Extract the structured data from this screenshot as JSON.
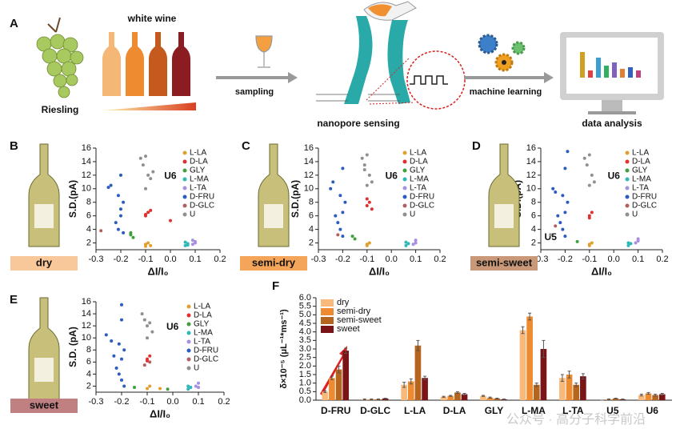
{
  "panel_a": {
    "label": "A",
    "wine": "white wine",
    "grape": "Riesling",
    "step1": "sampling",
    "step2": "nanopore sensing",
    "step3": "machine learning",
    "step4": "data analysis"
  },
  "watermark": "公众号 · 高分子科学前沿",
  "chart_data": [
    {
      "type": "scatter",
      "panel": "B",
      "sample": "dry",
      "sample_color": "#f9c89a",
      "xlabel": "ΔI/I₀",
      "ylabel": "S.D.(pA)",
      "annotations": [
        "U6"
      ],
      "xlim": [
        -0.3,
        0.2
      ],
      "xticks": [
        -0.3,
        -0.2,
        -0.1,
        {
          "value": 0,
          "label": "0.0"
        },
        0.1,
        0.2
      ],
      "ylim": [
        1,
        16
      ],
      "yticks": [
        2,
        4,
        6,
        8,
        10,
        12,
        14,
        16
      ],
      "series": [
        {
          "name": "L-LA",
          "color": "#e0a030",
          "x": [
            -0.1,
            -0.09,
            -0.1,
            -0.08
          ],
          "values": [
            1.5,
            2,
            1.8,
            1.6
          ]
        },
        {
          "name": "D-LA",
          "color": "#e03030",
          "x": [
            -0.1,
            -0.09,
            -0.08,
            -0.1,
            0
          ],
          "values": [
            6.2,
            6.5,
            6.8,
            6,
            5.3
          ]
        },
        {
          "name": "GLY",
          "color": "#40a040",
          "x": [
            -0.16,
            -0.15,
            -0.16
          ],
          "values": [
            3.2,
            2.8,
            3.5
          ]
        },
        {
          "name": "L-MA",
          "color": "#30b8b8",
          "x": [
            0.06,
            0.07,
            0.06,
            0.07
          ],
          "values": [
            1.6,
            1.9,
            2.1,
            1.7
          ]
        },
        {
          "name": "L-TA",
          "color": "#a890e0",
          "x": [
            0.09,
            0.1,
            0.1,
            0.09
          ],
          "values": [
            1.8,
            2.2,
            2,
            2.4
          ]
        },
        {
          "name": "D-FRU",
          "color": "#2c5cc0",
          "x": [
            -0.25,
            -0.24,
            -0.2,
            -0.21,
            -0.19,
            -0.2,
            -0.22,
            -0.21,
            -0.19,
            -0.2
          ],
          "values": [
            10.2,
            10.5,
            12,
            9,
            8,
            6,
            5,
            4,
            3.5,
            7
          ]
        },
        {
          "name": "D-GLC",
          "color": "#b06060",
          "x": [
            -0.28
          ],
          "values": [
            3.8
          ]
        },
        {
          "name": "U",
          "color": "#909090",
          "x": [
            -0.12,
            -0.11,
            -0.1,
            -0.09,
            -0.08,
            -0.07,
            -0.1
          ],
          "values": [
            14.5,
            13.5,
            14.8,
            12,
            11.5,
            12.5,
            10
          ]
        }
      ]
    },
    {
      "type": "scatter",
      "panel": "C",
      "sample": "semi-dry",
      "sample_color": "#f4a55a",
      "xlabel": "ΔI/I₀",
      "ylabel": "S.D.(pA)",
      "annotations": [
        "U6"
      ],
      "xlim": [
        -0.3,
        0.2
      ],
      "xticks": [
        -0.3,
        -0.2,
        -0.1,
        {
          "value": 0,
          "label": "0.0"
        },
        0.1,
        0.2
      ],
      "ylim": [
        1,
        16
      ],
      "yticks": [
        2,
        4,
        6,
        8,
        10,
        12,
        14,
        16
      ],
      "series": [
        {
          "name": "L-LA",
          "color": "#e0a030",
          "x": [
            -0.1,
            -0.09,
            -0.1
          ],
          "values": [
            1.6,
            2,
            1.8
          ]
        },
        {
          "name": "D-LA",
          "color": "#e03030",
          "x": [
            -0.1,
            -0.09,
            -0.08,
            -0.1
          ],
          "values": [
            7.5,
            8,
            7,
            8.5
          ]
        },
        {
          "name": "GLY",
          "color": "#40a040",
          "x": [
            -0.16,
            -0.15
          ],
          "values": [
            3,
            2.6
          ]
        },
        {
          "name": "L-MA",
          "color": "#30b8b8",
          "x": [
            0.06,
            0.07,
            0.06
          ],
          "values": [
            1.6,
            1.9,
            2.1
          ]
        },
        {
          "name": "L-TA",
          "color": "#a890e0",
          "x": [
            0.09,
            0.1,
            0.1
          ],
          "values": [
            1.8,
            2.4,
            2
          ]
        },
        {
          "name": "D-FRU",
          "color": "#2c5cc0",
          "x": [
            -0.25,
            -0.24,
            -0.2,
            -0.21,
            -0.19,
            -0.2,
            -0.22,
            -0.21,
            -0.2,
            -0.23
          ],
          "values": [
            10,
            11,
            13,
            9,
            8,
            6.5,
            5,
            4,
            3,
            6
          ]
        },
        {
          "name": "D-GLC",
          "color": "#b06060",
          "x": [
            -0.22
          ],
          "values": [
            3.2
          ]
        },
        {
          "name": "U",
          "color": "#909090",
          "x": [
            -0.12,
            -0.11,
            -0.1,
            -0.09,
            -0.08,
            -0.1,
            -0.11
          ],
          "values": [
            14.5,
            13.5,
            15,
            12,
            11,
            10.5,
            12.8
          ]
        }
      ]
    },
    {
      "type": "scatter",
      "panel": "D",
      "sample": "semi-sweet",
      "sample_color": "#c89878",
      "xlabel": "ΔI/I₀",
      "ylabel": "S.D.(pA)",
      "annotations": [
        "U6",
        "U5"
      ],
      "xlim": [
        -0.3,
        0.2
      ],
      "xticks": [
        -0.3,
        -0.2,
        -0.1,
        {
          "value": 0,
          "label": "0.0"
        },
        0.1,
        0.2
      ],
      "ylim": [
        1,
        16
      ],
      "yticks": [
        2,
        4,
        6,
        8,
        10,
        12,
        14,
        16
      ],
      "series": [
        {
          "name": "L-LA",
          "color": "#e0a030",
          "x": [
            -0.1,
            -0.09,
            -0.1
          ],
          "values": [
            1.6,
            2,
            1.8
          ]
        },
        {
          "name": "D-LA",
          "color": "#e03030",
          "x": [
            -0.1,
            -0.09,
            -0.1
          ],
          "values": [
            6,
            6.5,
            5.7
          ]
        },
        {
          "name": "GLY",
          "color": "#40a040",
          "x": [
            -0.15
          ],
          "values": [
            2.2
          ]
        },
        {
          "name": "L-MA",
          "color": "#30b8b8",
          "x": [
            0.06,
            0.07,
            0.06
          ],
          "values": [
            1.6,
            1.9,
            2
          ]
        },
        {
          "name": "L-TA",
          "color": "#a890e0",
          "x": [
            0.09,
            0.1,
            0.1
          ],
          "values": [
            2,
            2.6,
            2.3
          ]
        },
        {
          "name": "D-FRU",
          "color": "#2c5cc0",
          "x": [
            -0.25,
            -0.24,
            -0.2,
            -0.21,
            -0.19,
            -0.2,
            -0.22,
            -0.21,
            -0.2,
            -0.23,
            -0.19
          ],
          "values": [
            10,
            9.5,
            13,
            9,
            8,
            6.5,
            5,
            4,
            3,
            6,
            15.5
          ]
        },
        {
          "name": "D-GLC",
          "color": "#b06060",
          "x": [
            -0.24
          ],
          "values": [
            4.5
          ]
        },
        {
          "name": "U",
          "color": "#909090",
          "x": [
            -0.12,
            -0.11,
            -0.1,
            -0.09,
            -0.08,
            -0.1,
            -0.26
          ],
          "values": [
            14.5,
            13.5,
            15,
            12,
            11,
            10.5,
            3.2
          ]
        }
      ]
    },
    {
      "type": "scatter",
      "panel": "E",
      "sample": "sweet",
      "sample_color": "#c07f80",
      "xlabel": "ΔI/I₀",
      "ylabel": "S.D. (pA)",
      "annotations": [
        "U6"
      ],
      "xlim": [
        -0.3,
        0.2
      ],
      "xticks": [
        -0.3,
        -0.2,
        -0.1,
        {
          "value": 0,
          "label": "0.0"
        },
        0.1,
        0.2
      ],
      "ylim": [
        1,
        16
      ],
      "yticks": [
        2,
        4,
        6,
        8,
        10,
        12,
        14,
        16
      ],
      "series": [
        {
          "name": "L-LA",
          "color": "#e0a030",
          "x": [
            -0.1,
            -0.09,
            -0.05
          ],
          "values": [
            1.6,
            2,
            1.6
          ]
        },
        {
          "name": "D-LA",
          "color": "#e03030",
          "x": [
            -0.1,
            -0.09,
            -0.1
          ],
          "values": [
            6.5,
            7,
            6.2
          ]
        },
        {
          "name": "GLY",
          "color": "#40a040",
          "x": [
            -0.15,
            -0.02
          ],
          "values": [
            1.8,
            1.5
          ]
        },
        {
          "name": "L-MA",
          "color": "#30b8b8",
          "x": [
            0.06,
            0.07,
            0.06
          ],
          "values": [
            1.5,
            1.8,
            2
          ]
        },
        {
          "name": "L-TA",
          "color": "#a890e0",
          "x": [
            0.09,
            0.1,
            0.1
          ],
          "values": [
            2,
            2.5,
            1.8
          ]
        },
        {
          "name": "D-FRU",
          "color": "#2c5cc0",
          "x": [
            -0.26,
            -0.24,
            -0.2,
            -0.21,
            -0.19,
            -0.2,
            -0.22,
            -0.21,
            -0.2,
            -0.23,
            -0.2,
            -0.19
          ],
          "values": [
            10.5,
            9.5,
            13,
            9,
            8,
            6.5,
            5,
            4,
            3,
            7,
            15.5,
            2
          ]
        },
        {
          "name": "D-GLC",
          "color": "#b06060",
          "x": [
            -0.11,
            -0.09
          ],
          "values": [
            5.5,
            6
          ]
        },
        {
          "name": "U",
          "color": "#909090",
          "x": [
            -0.12,
            -0.11,
            -0.1,
            -0.09,
            -0.08,
            -0.1
          ],
          "values": [
            14,
            13,
            12,
            12.5,
            11,
            10
          ]
        }
      ]
    },
    {
      "type": "bar",
      "panel": "F",
      "ylabel": "δ×10⁻⁵ (μL⁻¹*ms⁻¹)",
      "categories": [
        "D-FRU",
        "D-GLC",
        "L-LA",
        "D-LA",
        "GLY",
        "L-MA",
        "L-TA",
        "U5",
        "U6"
      ],
      "ylim": [
        0,
        6
      ],
      "yticks": [
        {
          "value": 0,
          "label": "0.0"
        },
        0.5,
        {
          "value": 1,
          "label": "1.0"
        },
        1.5,
        {
          "value": 2,
          "label": "2.0"
        },
        2.5,
        {
          "value": 3,
          "label": "3.0"
        },
        3.5,
        {
          "value": 4,
          "label": "4.0"
        },
        4.5,
        {
          "value": 5,
          "label": "5.0"
        },
        5.5,
        {
          "value": 6,
          "label": "6.0"
        }
      ],
      "series": [
        {
          "name": "dry",
          "color": "#f8b97a",
          "values": [
            0.5,
            0.05,
            0.9,
            0.2,
            0.25,
            4.1,
            1.3,
            0,
            0.3
          ],
          "errors": [
            0.05,
            0.02,
            0.15,
            0.03,
            0.03,
            0.2,
            0.2,
            0,
            0.05
          ]
        },
        {
          "name": "semi-dry",
          "color": "#ee8a30",
          "values": [
            1.3,
            0.05,
            1.1,
            0.25,
            0.15,
            4.9,
            1.5,
            0.05,
            0.4
          ],
          "errors": [
            0.1,
            0.02,
            0.15,
            0.03,
            0.03,
            0.2,
            0.2,
            0.02,
            0.05
          ]
        },
        {
          "name": "semi-sweet",
          "color": "#b5651d",
          "values": [
            1.8,
            0.05,
            3.2,
            0.45,
            0.1,
            0.9,
            0.9,
            0.1,
            0.3
          ],
          "errors": [
            0.2,
            0.02,
            0.3,
            0.05,
            0.02,
            0.1,
            0.1,
            0.02,
            0.05
          ]
        },
        {
          "name": "sweet",
          "color": "#7b1416",
          "values": [
            2.9,
            0.1,
            1.3,
            0.35,
            0.05,
            3,
            1.4,
            0.05,
            0.35
          ],
          "errors": [
            0.15,
            0.02,
            0.1,
            0.05,
            0.02,
            0.5,
            0.15,
            0.02,
            0.05
          ]
        }
      ]
    }
  ]
}
